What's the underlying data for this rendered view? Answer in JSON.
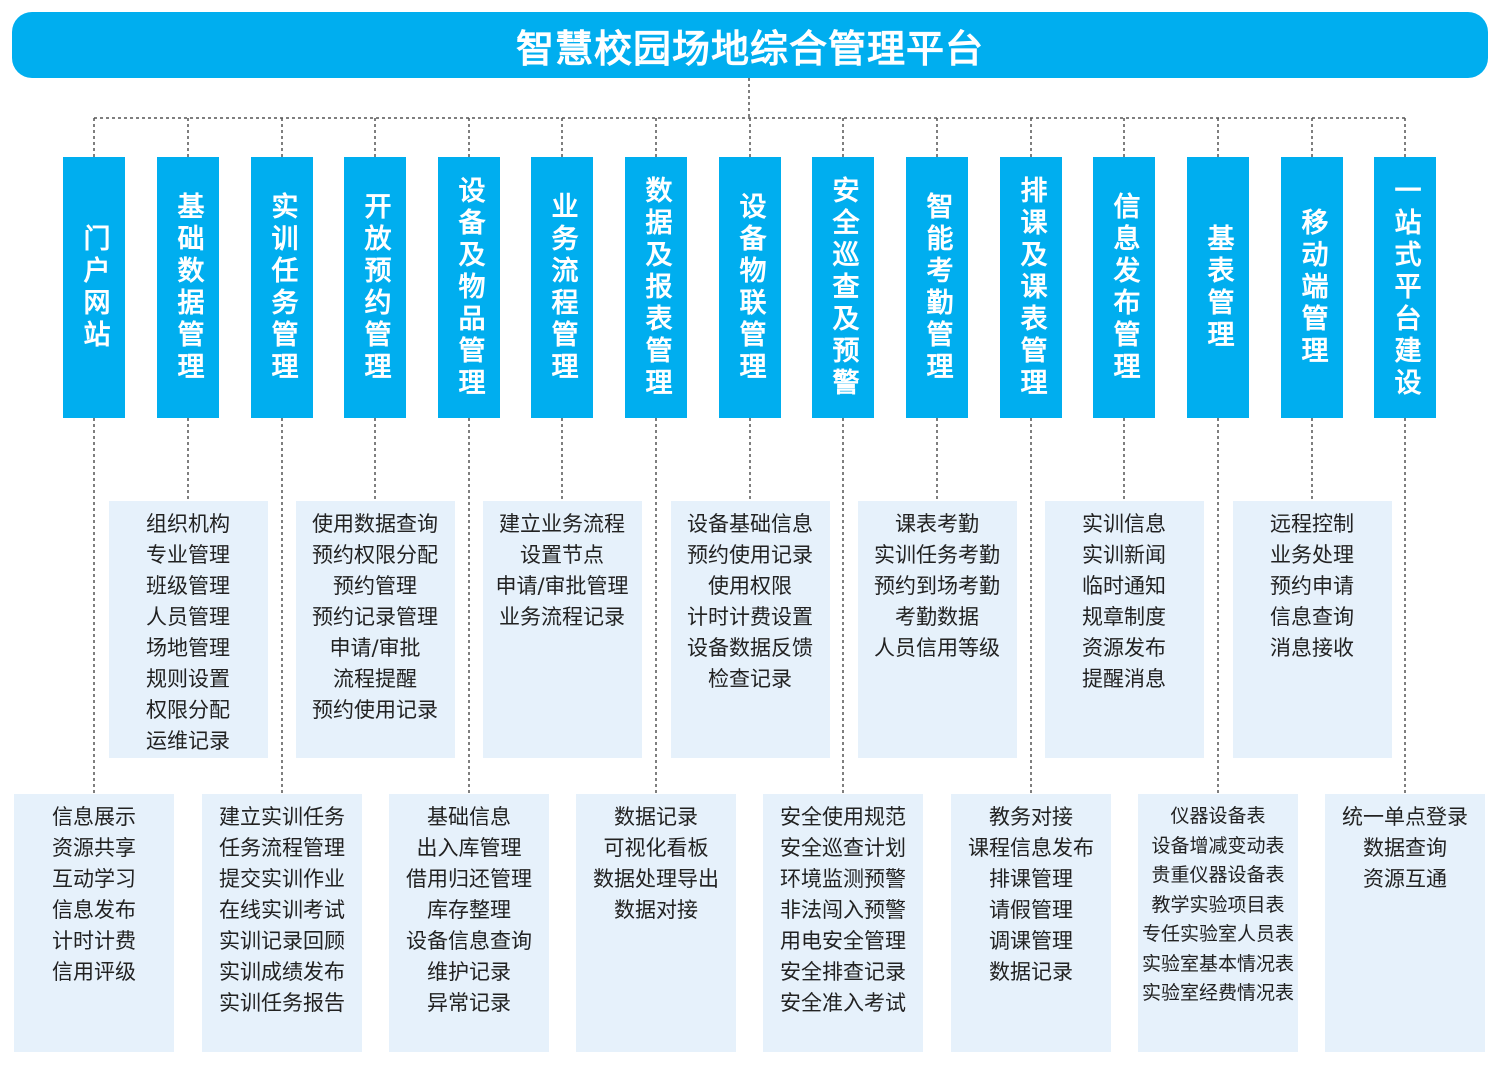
{
  "title": "智慧校园场地综合管理平台",
  "colors": {
    "primary": "#00aeef",
    "box": "#e6f1fb",
    "text": "#222222",
    "line": "#555555"
  },
  "modules": [
    {
      "label": "门户网站",
      "features": [
        "信息展示",
        "资源共享",
        "互动学习",
        "信息发布",
        "计时计费",
        "信用评级"
      ]
    },
    {
      "label": "基础数据管理",
      "features": [
        "组织机构",
        "专业管理",
        "班级管理",
        "人员管理",
        "场地管理",
        "规则设置",
        "权限分配",
        "运维记录"
      ]
    },
    {
      "label": "实训任务管理",
      "features": [
        "建立实训任务",
        "任务流程管理",
        "提交实训作业",
        "在线实训考试",
        "实训记录回顾",
        "实训成绩发布",
        "实训任务报告"
      ]
    },
    {
      "label": "开放预约管理",
      "features": [
        "使用数据查询",
        "预约权限分配",
        "预约管理",
        "预约记录管理",
        "申请/审批",
        "流程提醒",
        "预约使用记录"
      ]
    },
    {
      "label": "设备及物品管理",
      "features": [
        "基础信息",
        "出入库管理",
        "借用归还管理",
        "库存整理",
        "设备信息查询",
        "维护记录",
        "异常记录"
      ]
    },
    {
      "label": "业务流程管理",
      "features": [
        "建立业务流程",
        "设置节点",
        "申请/审批管理",
        "业务流程记录"
      ]
    },
    {
      "label": "数据及报表管理",
      "features": [
        "数据记录",
        "可视化看板",
        "数据处理导出",
        "数据对接"
      ]
    },
    {
      "label": "设备物联管理",
      "features": [
        "设备基础信息",
        "预约使用记录",
        "使用权限",
        "计时计费设置",
        "设备数据反馈",
        "检查记录"
      ]
    },
    {
      "label": "安全巡查及预警",
      "features": [
        "安全使用规范",
        "安全巡查计划",
        "环境监测预警",
        "非法闯入预警",
        "用电安全管理",
        "安全排查记录",
        "安全准入考试"
      ]
    },
    {
      "label": "智能考勤管理",
      "features": [
        "课表考勤",
        "实训任务考勤",
        "预约到场考勤",
        "考勤数据",
        "人员信用等级"
      ]
    },
    {
      "label": "排课及课表管理",
      "features": [
        "教务对接",
        "课程信息发布",
        "排课管理",
        "请假管理",
        "调课管理",
        "数据记录"
      ]
    },
    {
      "label": "信息发布管理",
      "features": [
        "实训信息",
        "实训新闻",
        "临时通知",
        "规章制度",
        "资源发布",
        "提醒消息"
      ]
    },
    {
      "label": "基表管理",
      "features": [
        "仪器设备表",
        "设备增减变动表",
        "贵重仪器设备表",
        "教学实验项目表",
        "专任实验室人员表",
        "实验室基本情况表",
        "实验室经费情况表"
      ]
    },
    {
      "label": "移动端管理",
      "features": [
        "远程控制",
        "业务处理",
        "预约申请",
        "信息查询",
        "消息接收"
      ]
    },
    {
      "label": "一站式平台建设",
      "features": [
        "统一单点登录",
        "数据查询",
        "资源互通"
      ]
    }
  ]
}
